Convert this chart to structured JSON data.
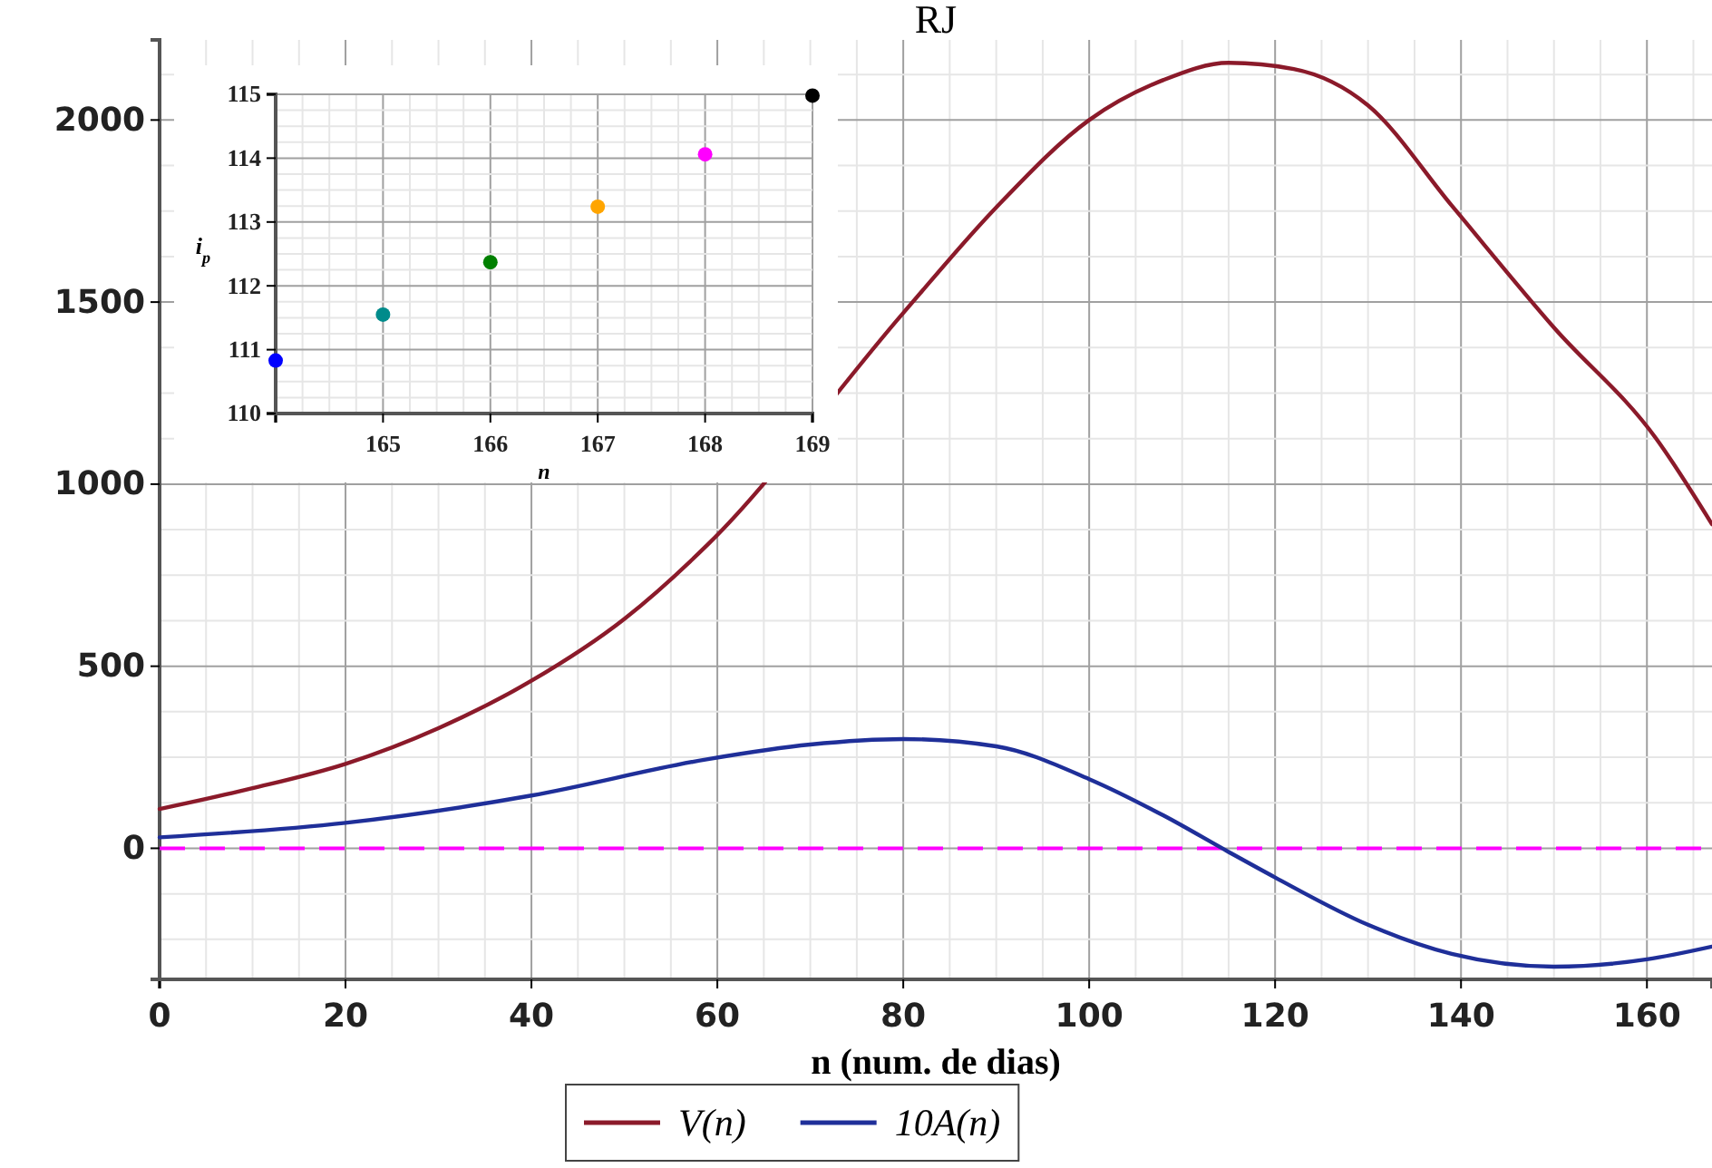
{
  "chart_data": [
    {
      "type": "line",
      "title": "RJ",
      "xlabel": "n (num. de dias)",
      "xlim": [
        0,
        167
      ],
      "ylim": [
        -360,
        2220
      ],
      "xticks": [
        0,
        20,
        40,
        60,
        80,
        100,
        120,
        140,
        160
      ],
      "yticks": [
        0,
        500,
        1000,
        1500,
        2000
      ],
      "grid": true,
      "legend": "bottom",
      "marker": "none",
      "line_style": "solid",
      "series": [
        {
          "name": "V(n)",
          "color": "#8b1a2a",
          "x": [
            0,
            10,
            20,
            30,
            40,
            50,
            59,
            80,
            90,
            100,
            108,
            115,
            122,
            130,
            139,
            150,
            161,
            167
          ],
          "values": [
            108,
            165,
            232,
            330,
            460,
            630,
            835,
            1470,
            1760,
            2000,
            2110,
            2157,
            2140,
            2040,
            1765,
            1430,
            1125,
            890
          ]
        },
        {
          "name": "10A(n)",
          "color": "#1f2f99",
          "x": [
            0,
            20,
            40,
            59,
            70,
            80,
            90,
            100,
            108,
            115,
            120,
            130,
            139,
            150,
            160,
            167
          ],
          "values": [
            30,
            70,
            145,
            245,
            285,
            300,
            280,
            190,
            90,
            -10,
            -80,
            -210,
            -290,
            -325,
            -305,
            -270
          ]
        }
      ],
      "ref_lines": [
        {
          "axis": "y",
          "value": 0,
          "color": "#ff00ff",
          "line_style": "dashed"
        }
      ]
    },
    {
      "type": "scatter",
      "xlabel": "n",
      "ylabel": "i$_{p}$",
      "xlim": [
        164,
        169
      ],
      "ylim": [
        110,
        115
      ],
      "xticks": [
        {
          "value": 164,
          "label": null
        },
        165,
        166,
        167,
        168,
        169
      ],
      "yticks": [
        110,
        111,
        112,
        113,
        114,
        115
      ],
      "grid": true,
      "marker": "circle",
      "x": [
        164,
        165,
        166,
        167,
        168,
        169
      ],
      "values": [
        110.83,
        111.55,
        112.37,
        113.24,
        114.06,
        114.98
      ],
      "colors": [
        "#0000ff",
        "#008b8b",
        "#008000",
        "#ffa500",
        "#ff00ff",
        "#000000"
      ]
    }
  ]
}
